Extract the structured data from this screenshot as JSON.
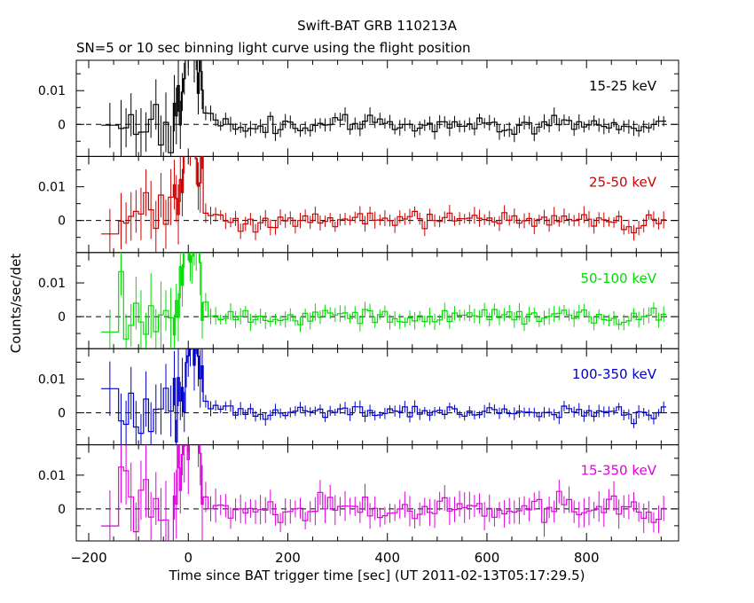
{
  "title": "Swift-BAT GRB 110213A",
  "subtitle": "SN=5 or 10 sec binning light curve using the flight position",
  "xlabel": "Time since BAT trigger time [sec] (UT 2011-02-13T05:17:29.5)",
  "ylabel": "Counts/sec/det",
  "chart_data": {
    "type": "line",
    "step": true,
    "error_bars": true,
    "stacked_panels": 5,
    "xlim": [
      -225,
      985
    ],
    "ylim": [
      -0.0095,
      0.019
    ],
    "x_ticks": [
      -200,
      0,
      200,
      400,
      600,
      800
    ],
    "y_ticks": [
      0,
      0.01
    ],
    "y_tick_labels": [
      "0",
      "0.01"
    ],
    "zero_reference_line": "dashed",
    "panels": [
      {
        "name": "15-25 keV",
        "color": "#000000",
        "seed": 11,
        "pre_sigma": 0.0045,
        "post_sigma": 0.0012,
        "post_err": 0.0018,
        "peak": 0.027
      },
      {
        "name": "25-50 keV",
        "color": "#cc0000",
        "seed": 23,
        "pre_sigma": 0.0045,
        "post_sigma": 0.0013,
        "post_err": 0.002,
        "peak": 0.026
      },
      {
        "name": "50-100 keV",
        "color": "#00dd00",
        "seed": 37,
        "pre_sigma": 0.005,
        "post_sigma": 0.0012,
        "post_err": 0.002,
        "peak": 0.03
      },
      {
        "name": "100-350 keV",
        "color": "#0000cc",
        "seed": 51,
        "pre_sigma": 0.0045,
        "post_sigma": 0.001,
        "post_err": 0.0015,
        "peak": 0.025
      },
      {
        "name": "15-350 keV",
        "color": "#dd00dd",
        "seed": 67,
        "pre_sigma": 0.006,
        "post_sigma": 0.0018,
        "post_err": 0.0035,
        "peak": 0.028
      }
    ]
  }
}
